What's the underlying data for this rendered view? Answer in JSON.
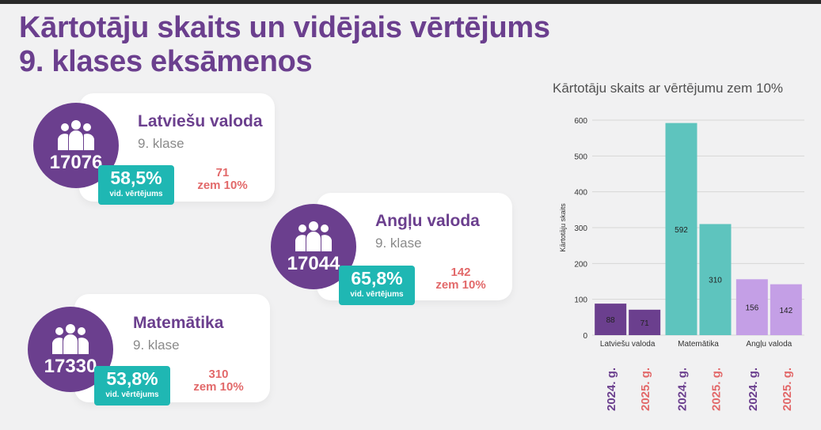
{
  "title_line1": "Kārtotāju skaits un vidējais vērtējums",
  "title_line2": "9. klases eksāmenos",
  "cards": [
    {
      "subject": "Latviešu valoda",
      "grade": "9. klase",
      "count": "17076",
      "avg": "58,5%",
      "avg_label": "vid. vērtējums",
      "below_value": "71",
      "below_label": "zem 10%"
    },
    {
      "subject": "Angļu valoda",
      "grade": "9. klase",
      "count": "17044",
      "avg": "65,8%",
      "avg_label": "vid. vērtējums",
      "below_value": "142",
      "below_label": "zem 10%"
    },
    {
      "subject": "Matemātika",
      "grade": "9. klase",
      "count": "17330",
      "avg": "53,8%",
      "avg_label": "vid. vērtējums",
      "below_value": "310",
      "below_label": "zem 10%"
    }
  ],
  "icons": {
    "people": "people-group-icon"
  },
  "colors": {
    "purple": "#6b3f8e",
    "teal": "#1fb7b3",
    "red": "#e2696a",
    "bar_purple": "#6b3f8e",
    "bar_teal": "#5ec4be",
    "bar_lilac": "#c49fe6"
  },
  "chart_data": {
    "type": "bar",
    "title": "Kārtotāju skaits ar vērtējumu zem 10%",
    "ylabel": "Kārtotāju skaits",
    "xlabel": "",
    "ylim": [
      0,
      600
    ],
    "yticks": [
      0,
      100,
      200,
      300,
      400,
      500,
      600
    ],
    "grid": true,
    "categories": [
      "Latviešu valoda",
      "Matemātika",
      "Angļu valoda"
    ],
    "year_labels": [
      "2024. g.",
      "2025. g."
    ],
    "series": [
      {
        "name": "2024. g.",
        "values": [
          88,
          592,
          156
        ]
      },
      {
        "name": "2025. g.",
        "values": [
          71,
          310,
          142
        ]
      }
    ],
    "category_colors": [
      "#6b3f8e",
      "#5ec4be",
      "#c49fe6"
    ]
  }
}
